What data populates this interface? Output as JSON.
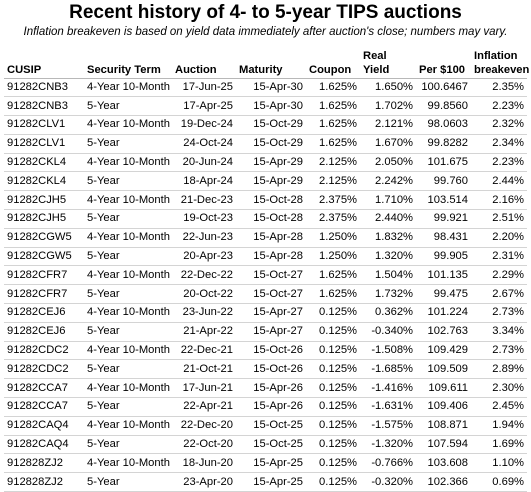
{
  "title": "Recent history of 4- to 5-year TIPS auctions",
  "subtitle": "Inflation breakeven is based on yield data immediately after auction's close; numbers may vary.",
  "table": {
    "headers": [
      [
        "CUSIP"
      ],
      [
        "Security Term"
      ],
      [
        "Auction"
      ],
      [
        "Maturity"
      ],
      [
        "Coupon"
      ],
      [
        "Real",
        "Yield"
      ],
      [
        "Per $100"
      ],
      [
        "Inflation",
        "breakeven"
      ]
    ],
    "rows": [
      [
        "91282CNB3",
        "4-Year 10-Month",
        "17-Jun-25",
        "15-Apr-30",
        "1.625%",
        "1.650%",
        "100.6467",
        "2.35%"
      ],
      [
        "91282CNB3",
        "5-Year",
        "17-Apr-25",
        "15-Apr-30",
        "1.625%",
        "1.702%",
        "99.8560",
        "2.23%"
      ],
      [
        "91282CLV1",
        "4-Year 10-Month",
        "19-Dec-24",
        "15-Oct-29",
        "1.625%",
        "2.121%",
        "98.0603",
        "2.32%"
      ],
      [
        "91282CLV1",
        "5-Year",
        "24-Oct-24",
        "15-Oct-29",
        "1.625%",
        "1.670%",
        "99.8282",
        "2.34%"
      ],
      [
        "91282CKL4",
        "4-Year 10-Month",
        "20-Jun-24",
        "15-Apr-29",
        "2.125%",
        "2.050%",
        "101.675",
        "2.23%"
      ],
      [
        "91282CKL4",
        "5-Year",
        "18-Apr-24",
        "15-Apr-29",
        "2.125%",
        "2.242%",
        "99.760",
        "2.44%"
      ],
      [
        "91282CJH5",
        "4-Year 10-Month",
        "21-Dec-23",
        "15-Oct-28",
        "2.375%",
        "1.710%",
        "103.514",
        "2.16%"
      ],
      [
        "91282CJH5",
        "5-Year",
        "19-Oct-23",
        "15-Oct-28",
        "2.375%",
        "2.440%",
        "99.921",
        "2.51%"
      ],
      [
        "91282CGW5",
        "4-Year 10-Month",
        "22-Jun-23",
        "15-Apr-28",
        "1.250%",
        "1.832%",
        "98.431",
        "2.20%"
      ],
      [
        "91282CGW5",
        "5-Year",
        "20-Apr-23",
        "15-Apr-28",
        "1.250%",
        "1.320%",
        "99.905",
        "2.31%"
      ],
      [
        "91282CFR7",
        "4-Year 10-Month",
        "22-Dec-22",
        "15-Oct-27",
        "1.625%",
        "1.504%",
        "101.135",
        "2.29%"
      ],
      [
        "91282CFR7",
        "5-Year",
        "20-Oct-22",
        "15-Oct-27",
        "1.625%",
        "1.732%",
        "99.475",
        "2.67%"
      ],
      [
        "91282CEJ6",
        "4-Year 10-Month",
        "23-Jun-22",
        "15-Apr-27",
        "0.125%",
        "0.362%",
        "101.224",
        "2.73%"
      ],
      [
        "91282CEJ6",
        "5-Year",
        "21-Apr-22",
        "15-Apr-27",
        "0.125%",
        "-0.340%",
        "102.763",
        "3.34%"
      ],
      [
        "91282CDC2",
        "4-Year 10-Month",
        "22-Dec-21",
        "15-Oct-26",
        "0.125%",
        "-1.508%",
        "109.429",
        "2.73%"
      ],
      [
        "91282CDC2",
        "5-Year",
        "21-Oct-21",
        "15-Oct-26",
        "0.125%",
        "-1.685%",
        "109.509",
        "2.89%"
      ],
      [
        "91282CCA7",
        "4-Year 10-Month",
        "17-Jun-21",
        "15-Apr-26",
        "0.125%",
        "-1.416%",
        "109.611",
        "2.30%"
      ],
      [
        "91282CCA7",
        "5-Year",
        "22-Apr-21",
        "15-Apr-26",
        "0.125%",
        "-1.631%",
        "109.406",
        "2.45%"
      ],
      [
        "91282CAQ4",
        "4-Year 10-Month",
        "22-Dec-20",
        "15-Oct-25",
        "0.125%",
        "-1.575%",
        "108.871",
        "1.94%"
      ],
      [
        "91282CAQ4",
        "5-Year",
        "22-Oct-20",
        "15-Oct-25",
        "0.125%",
        "-1.320%",
        "107.594",
        "1.69%"
      ],
      [
        "912828ZJ2",
        "4-Year 10-Month",
        "18-Jun-20",
        "15-Apr-25",
        "0.125%",
        "-0.766%",
        "103.608",
        "1.10%"
      ],
      [
        "912828ZJ2",
        "5-Year",
        "23-Apr-20",
        "15-Apr-25",
        "0.125%",
        "-0.320%",
        "102.366",
        "0.69%"
      ]
    ]
  }
}
